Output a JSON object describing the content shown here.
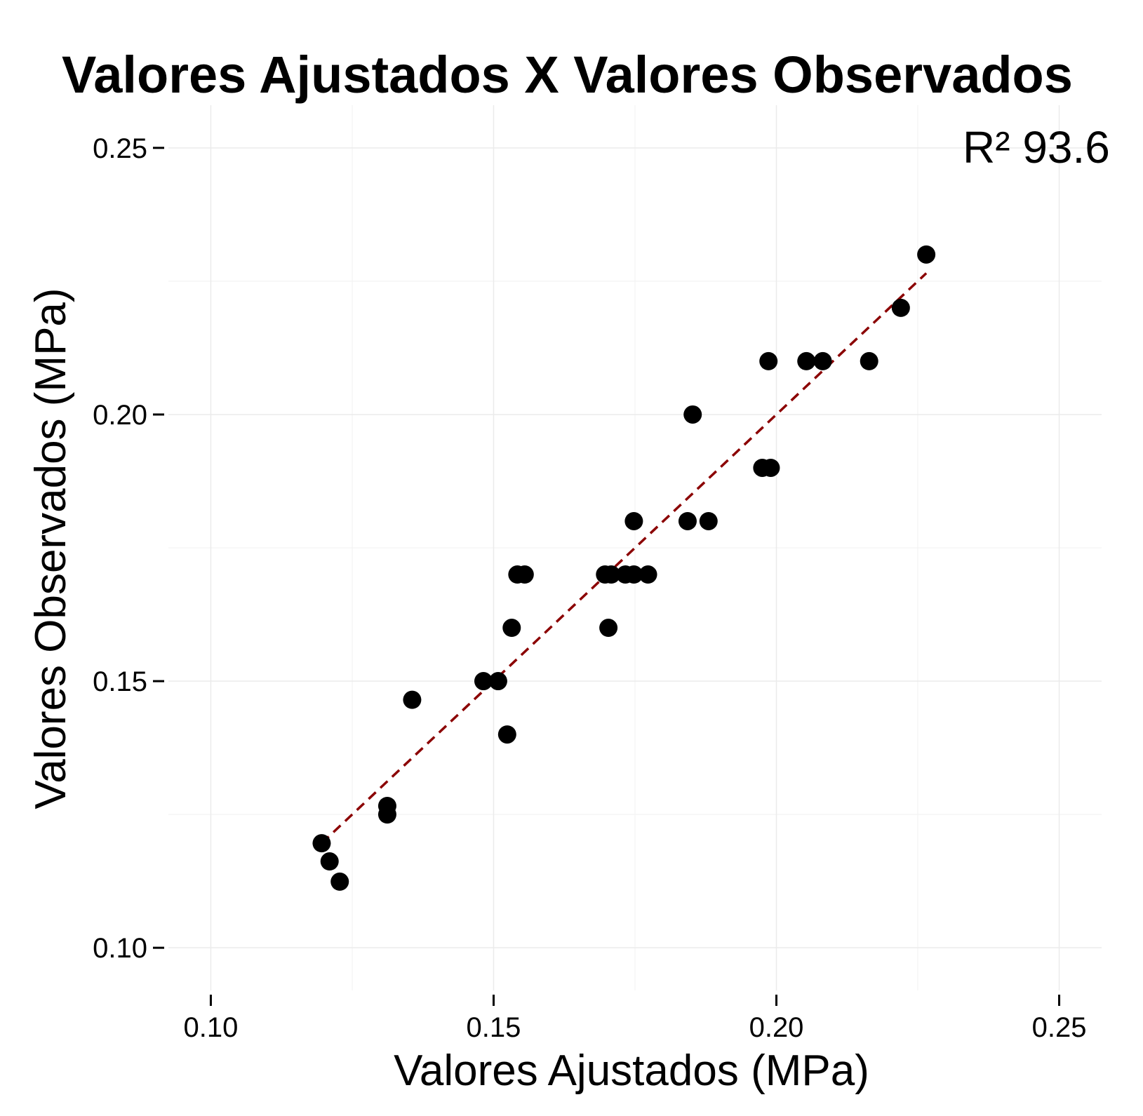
{
  "chart_data": {
    "type": "scatter",
    "title": "Valores Ajustados X Valores Observados",
    "xlabel": "Valores Ajustados (MPa)",
    "ylabel": "Valores Observados (MPa)",
    "annotation": "R² 93.6",
    "xlim": [
      0.0925,
      0.2575
    ],
    "ylim": [
      0.092,
      0.258
    ],
    "x_ticks": [
      0.1,
      0.15,
      0.2,
      0.25
    ],
    "x_tick_labels": [
      "0.10",
      "0.15",
      "0.20",
      "0.25"
    ],
    "y_ticks": [
      0.1,
      0.15,
      0.2,
      0.25
    ],
    "y_tick_labels": [
      "0.10",
      "0.15",
      "0.20",
      "0.25"
    ],
    "x_minor": [
      0.125,
      0.175,
      0.225
    ],
    "y_minor": [
      0.125,
      0.175,
      0.225
    ],
    "grid": true,
    "points": [
      {
        "x": 0.1196,
        "y": 0.1196
      },
      {
        "x": 0.121,
        "y": 0.1162
      },
      {
        "x": 0.1228,
        "y": 0.1124
      },
      {
        "x": 0.1312,
        "y": 0.1266
      },
      {
        "x": 0.1312,
        "y": 0.125
      },
      {
        "x": 0.1356,
        "y": 0.1465
      },
      {
        "x": 0.1482,
        "y": 0.15
      },
      {
        "x": 0.1508,
        "y": 0.15
      },
      {
        "x": 0.1524,
        "y": 0.14
      },
      {
        "x": 0.1532,
        "y": 0.16
      },
      {
        "x": 0.1542,
        "y": 0.17
      },
      {
        "x": 0.1555,
        "y": 0.17
      },
      {
        "x": 0.1697,
        "y": 0.17
      },
      {
        "x": 0.1708,
        "y": 0.17
      },
      {
        "x": 0.1703,
        "y": 0.16
      },
      {
        "x": 0.1733,
        "y": 0.17
      },
      {
        "x": 0.1748,
        "y": 0.17
      },
      {
        "x": 0.1773,
        "y": 0.17
      },
      {
        "x": 0.1748,
        "y": 0.18
      },
      {
        "x": 0.1843,
        "y": 0.18
      },
      {
        "x": 0.188,
        "y": 0.18
      },
      {
        "x": 0.1852,
        "y": 0.2
      },
      {
        "x": 0.1975,
        "y": 0.19
      },
      {
        "x": 0.199,
        "y": 0.19
      },
      {
        "x": 0.1986,
        "y": 0.21
      },
      {
        "x": 0.2053,
        "y": 0.21
      },
      {
        "x": 0.2082,
        "y": 0.21
      },
      {
        "x": 0.2164,
        "y": 0.21
      },
      {
        "x": 0.222,
        "y": 0.22
      },
      {
        "x": 0.2265,
        "y": 0.23
      }
    ],
    "fit_line": {
      "x": [
        0.1196,
        0.2265
      ],
      "y": [
        0.1196,
        0.2265
      ],
      "color": "#8b0000",
      "style": "dashed"
    },
    "point_color": "#000000"
  }
}
